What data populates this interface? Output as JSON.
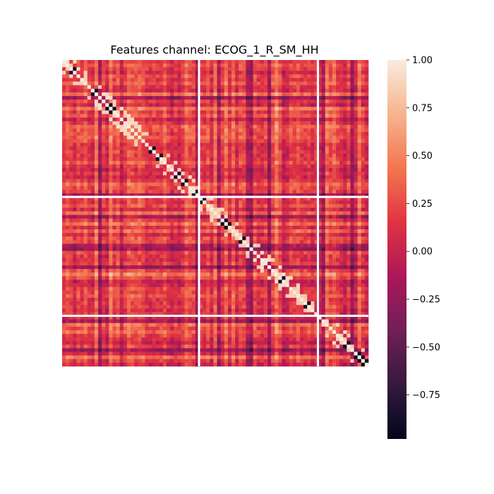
{
  "chart_data": {
    "type": "heatmap",
    "title": "Features channel: ECOG_1_R_SM_HH",
    "xlabel": "",
    "ylabel": "",
    "matrix_size": 85,
    "feature_groups": [
      38,
      33,
      14
    ],
    "description": "Feature-by-feature correlation matrix; diagonal equals 1.0, white lines separate feature groups",
    "colorbar": {
      "vmin": -0.98,
      "vmax": 1.0,
      "ticks": [
        1.0,
        0.75,
        0.5,
        0.25,
        0.0,
        -0.25,
        -0.5,
        -0.75
      ],
      "tick_labels": [
        "1.00",
        "0.75",
        "0.50",
        "0.25",
        "0.00",
        "−0.25",
        "−0.50",
        "−0.75"
      ],
      "colormap": "rocket",
      "colormap_stops": [
        "#03051a",
        "#36193e",
        "#701f57",
        "#ad1759",
        "#e13342",
        "#f37651",
        "#f6b48f",
        "#faebdd"
      ]
    }
  }
}
